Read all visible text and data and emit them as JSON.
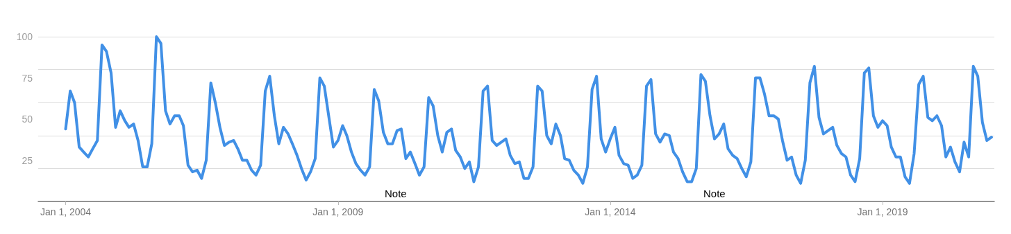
{
  "chart_data": {
    "type": "line",
    "x": [
      "2004-01",
      "2004-02",
      "2004-03",
      "2004-04",
      "2004-05",
      "2004-06",
      "2004-07",
      "2004-08",
      "2004-09",
      "2004-10",
      "2004-11",
      "2004-12",
      "2005-01",
      "2005-02",
      "2005-03",
      "2005-04",
      "2005-05",
      "2005-06",
      "2005-07",
      "2005-08",
      "2005-09",
      "2005-10",
      "2005-11",
      "2005-12",
      "2006-01",
      "2006-02",
      "2006-03",
      "2006-04",
      "2006-05",
      "2006-06",
      "2006-07",
      "2006-08",
      "2006-09",
      "2006-10",
      "2006-11",
      "2006-12",
      "2007-01",
      "2007-02",
      "2007-03",
      "2007-04",
      "2007-05",
      "2007-06",
      "2007-07",
      "2007-08",
      "2007-09",
      "2007-10",
      "2007-11",
      "2007-12",
      "2008-01",
      "2008-02",
      "2008-03",
      "2008-04",
      "2008-05",
      "2008-06",
      "2008-07",
      "2008-08",
      "2008-09",
      "2008-10",
      "2008-11",
      "2008-12",
      "2009-01",
      "2009-02",
      "2009-03",
      "2009-04",
      "2009-05",
      "2009-06",
      "2009-07",
      "2009-08",
      "2009-09",
      "2009-10",
      "2009-11",
      "2009-12",
      "2010-01",
      "2010-02",
      "2010-03",
      "2010-04",
      "2010-05",
      "2010-06",
      "2010-07",
      "2010-08",
      "2010-09",
      "2010-10",
      "2010-11",
      "2010-12",
      "2011-01",
      "2011-02",
      "2011-03",
      "2011-04",
      "2011-05",
      "2011-06",
      "2011-07",
      "2011-08",
      "2011-09",
      "2011-10",
      "2011-11",
      "2011-12",
      "2012-01",
      "2012-02",
      "2012-03",
      "2012-04",
      "2012-05",
      "2012-06",
      "2012-07",
      "2012-08",
      "2012-09",
      "2012-10",
      "2012-11",
      "2012-12",
      "2013-01",
      "2013-02",
      "2013-03",
      "2013-04",
      "2013-05",
      "2013-06",
      "2013-07",
      "2013-08",
      "2013-09",
      "2013-10",
      "2013-11",
      "2013-12",
      "2014-01",
      "2014-02",
      "2014-03",
      "2014-04",
      "2014-05",
      "2014-06",
      "2014-07",
      "2014-08",
      "2014-09",
      "2014-10",
      "2014-11",
      "2014-12",
      "2015-01",
      "2015-02",
      "2015-03",
      "2015-04",
      "2015-05",
      "2015-06",
      "2015-07",
      "2015-08",
      "2015-09",
      "2015-10",
      "2015-11",
      "2015-12",
      "2016-01",
      "2016-02",
      "2016-03",
      "2016-04",
      "2016-05",
      "2016-06",
      "2016-07",
      "2016-08",
      "2016-09",
      "2016-10",
      "2016-11",
      "2016-12",
      "2017-01",
      "2017-02",
      "2017-03",
      "2017-04",
      "2017-05",
      "2017-06",
      "2017-07",
      "2017-08",
      "2017-09",
      "2017-10",
      "2017-11",
      "2017-12",
      "2018-01",
      "2018-02",
      "2018-03",
      "2018-04",
      "2018-05",
      "2018-06",
      "2018-07",
      "2018-08",
      "2018-09",
      "2018-10",
      "2018-11",
      "2018-12",
      "2019-01",
      "2019-02",
      "2019-03",
      "2019-04",
      "2019-05",
      "2019-06",
      "2019-07",
      "2019-08",
      "2019-09",
      "2019-10",
      "2019-11",
      "2019-12",
      "2020-01",
      "2020-02",
      "2020-03",
      "2020-04",
      "2020-05",
      "2020-06",
      "2020-07",
      "2020-08",
      "2020-09",
      "2020-10",
      "2020-11",
      "2020-12",
      "2021-01"
    ],
    "series": [
      {
        "color": "#4190e6",
        "values": [
          44,
          67,
          60,
          33,
          30,
          27,
          32,
          37,
          95,
          91,
          78,
          45,
          55,
          49,
          45,
          47,
          37,
          21,
          21,
          35,
          100,
          96,
          55,
          47,
          52,
          52,
          46,
          22,
          18,
          19,
          14,
          25,
          72,
          60,
          45,
          34,
          36,
          37,
          32,
          25,
          25,
          19,
          16,
          22,
          67,
          76,
          52,
          35,
          45,
          41,
          35,
          28,
          20,
          13,
          18,
          26,
          75,
          70,
          51,
          33,
          37,
          46,
          40,
          30,
          23,
          19,
          16,
          21,
          68,
          61,
          42,
          35,
          35,
          43,
          44,
          26,
          30,
          23,
          16,
          21,
          63,
          58,
          40,
          30,
          42,
          44,
          31,
          27,
          20,
          24,
          12,
          21,
          67,
          70,
          37,
          34,
          36,
          38,
          28,
          23,
          24,
          14,
          14,
          21,
          70,
          67,
          40,
          35,
          47,
          40,
          26,
          25,
          19,
          16,
          11,
          21,
          68,
          76,
          38,
          30,
          38,
          45,
          28,
          23,
          22,
          14,
          16,
          22,
          70,
          74,
          41,
          36,
          41,
          40,
          30,
          26,
          18,
          12,
          12,
          20,
          77,
          73,
          52,
          38,
          41,
          47,
          32,
          28,
          26,
          20,
          15,
          24,
          75,
          75,
          65,
          52,
          52,
          50,
          37,
          25,
          27,
          16,
          11,
          25,
          72,
          82,
          51,
          41,
          43,
          45,
          34,
          29,
          27,
          16,
          12,
          26,
          78,
          81,
          52,
          45,
          49,
          46,
          33,
          27,
          27,
          15,
          11,
          29,
          71,
          76,
          51,
          49,
          52,
          46,
          27,
          33,
          24,
          18,
          36,
          27,
          82,
          76,
          48,
          37,
          39
        ]
      }
    ],
    "xlim": [
      "2003-07-01",
      "2021-01-20"
    ],
    "xticks": [
      {
        "value": "2004-01-01",
        "label": "Jan 1, 2004"
      },
      {
        "value": "2009-01-01",
        "label": "Jan 1, 2009"
      },
      {
        "value": "2014-01-01",
        "label": "Jan 1, 2014"
      },
      {
        "value": "2019-01-01",
        "label": "Jan 1, 2019"
      }
    ],
    "ylim": [
      0,
      100
    ],
    "yticks": [
      25,
      50,
      75,
      100
    ],
    "grid": "y",
    "marker": "none",
    "line_style": "solid",
    "annotations": [
      "Note",
      "Note"
    ]
  }
}
